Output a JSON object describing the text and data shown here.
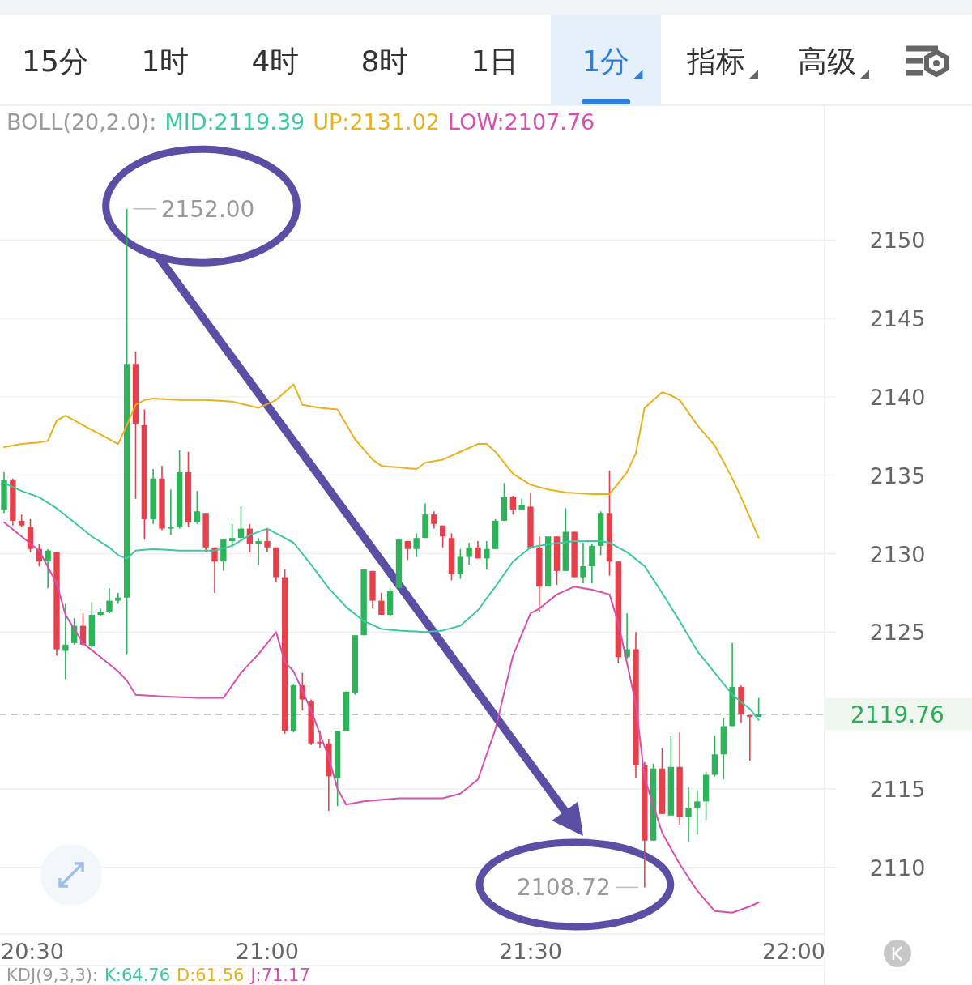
{
  "chart_data": {
    "type": "candlestick",
    "legend_title": "BOLL(20,2.0):",
    "legend": "top",
    "grid": "y",
    "xlim": [
      20.4923,
      22.0585
    ],
    "ylim": [
      2105.9,
      2158.6
    ],
    "xticks": [
      {
        "value": 20.5,
        "label": "20:30"
      },
      {
        "value": 21,
        "label": "21:00"
      },
      {
        "value": 21.5,
        "label": "21:30"
      },
      {
        "value": 22,
        "label": "22:00"
      }
    ],
    "yticks": [
      2110,
      2115,
      2125,
      2130,
      2135,
      2140,
      2145,
      2150
    ],
    "x": [
      20.5,
      20.5167,
      20.5333,
      20.55,
      20.5667,
      20.5833,
      20.6,
      20.6167,
      20.6333,
      20.65,
      20.6667,
      20.6833,
      20.7,
      20.7167,
      20.7333,
      20.75,
      20.7667,
      20.7833,
      20.8,
      20.8167,
      20.8333,
      20.85,
      20.8667,
      20.8833,
      20.9,
      20.9167,
      20.9333,
      20.95,
      20.9667,
      20.9833,
      21.0,
      21.0167,
      21.0333,
      21.05,
      21.0667,
      21.0833,
      21.1,
      21.1167,
      21.1333,
      21.15,
      21.1667,
      21.1833,
      21.2,
      21.2167,
      21.2333,
      21.25,
      21.2667,
      21.2833,
      21.3,
      21.3167,
      21.3333,
      21.35,
      21.3667,
      21.3833,
      21.4,
      21.4167,
      21.4333,
      21.45,
      21.4667,
      21.4833,
      21.5,
      21.5167,
      21.5333,
      21.55,
      21.5667,
      21.5833,
      21.6,
      21.6167,
      21.6333,
      21.65,
      21.6667,
      21.6833,
      21.7,
      21.7167,
      21.7333,
      21.75,
      21.7667,
      21.7833,
      21.8,
      21.8167,
      21.8333,
      21.85,
      21.8667,
      21.8833,
      21.9,
      21.9167,
      21.9333
    ],
    "ohlc": [
      [
        2132.8,
        2135.2,
        2132.6,
        2134.7
      ],
      [
        2134.7,
        2134.8,
        2131.8,
        2132.1
      ],
      [
        2132.1,
        2132.5,
        2131.7,
        2131.8
      ],
      [
        2131.7,
        2132.2,
        2130.1,
        2130.3
      ],
      [
        2130.3,
        2130.6,
        2129.2,
        2129.5
      ],
      [
        2129.5,
        2130.3,
        2127.8,
        2130.2
      ],
      [
        2130.1,
        2130.1,
        2123.5,
        2123.9
      ],
      [
        2123.8,
        2126.8,
        2122.0,
        2124.2
      ],
      [
        2124.3,
        2125.9,
        2124.2,
        2125.4
      ],
      [
        2125.4,
        2126.2,
        2124.1,
        2124.2
      ],
      [
        2124.1,
        2126.9,
        2124.0,
        2126.1
      ],
      [
        2126.1,
        2126.5,
        2126.0,
        2126.3
      ],
      [
        2126.3,
        2127.8,
        2126.2,
        2127.0
      ],
      [
        2127.0,
        2127.5,
        2126.8,
        2127.2
      ],
      [
        2127.2,
        2152.0,
        2123.6,
        2142.1
      ],
      [
        2142.1,
        2142.9,
        2133.5,
        2138.3
      ],
      [
        2138.2,
        2139.2,
        2130.9,
        2132.2
      ],
      [
        2132.2,
        2135.4,
        2131.9,
        2134.8
      ],
      [
        2134.8,
        2135.6,
        2131.5,
        2131.6
      ],
      [
        2131.6,
        2134.1,
        2131.2,
        2131.7
      ],
      [
        2131.7,
        2136.6,
        2131.6,
        2135.2
      ],
      [
        2135.2,
        2136.5,
        2131.7,
        2132.0
      ],
      [
        2132.0,
        2134.0,
        2131.9,
        2132.7
      ],
      [
        2132.6,
        2132.6,
        2130.1,
        2130.4
      ],
      [
        2130.4,
        2130.4,
        2127.5,
        2129.5
      ],
      [
        2129.5,
        2130.9,
        2128.9,
        2130.9
      ],
      [
        2130.8,
        2131.9,
        2130.5,
        2131.0
      ],
      [
        2131.0,
        2133.0,
        2131.0,
        2131.6
      ],
      [
        2131.6,
        2131.9,
        2130.1,
        2130.6
      ],
      [
        2130.6,
        2131.0,
        2129.3,
        2130.8
      ],
      [
        2130.8,
        2131.6,
        2130.1,
        2130.4
      ],
      [
        2130.4,
        2130.4,
        2128.2,
        2128.5
      ],
      [
        2128.5,
        2129.0,
        2118.5,
        2118.7
      ],
      [
        2118.7,
        2121.7,
        2118.6,
        2121.6
      ],
      [
        2121.6,
        2122.4,
        2120.0,
        2120.7
      ],
      [
        2120.6,
        2120.7,
        2117.8,
        2117.9
      ],
      [
        2118.0,
        2118.7,
        2117.6,
        2117.9
      ],
      [
        2117.9,
        2118.2,
        2113.6,
        2115.8
      ],
      [
        2115.7,
        2118.7,
        2113.9,
        2118.7
      ],
      [
        2118.7,
        2121.2,
        2118.7,
        2121.2
      ],
      [
        2121.1,
        2124.8,
        2121.0,
        2124.8
      ],
      [
        2124.8,
        2129.0,
        2124.8,
        2129.0
      ],
      [
        2128.9,
        2128.9,
        2126.5,
        2127.0
      ],
      [
        2127.0,
        2127.5,
        2126.1,
        2126.1
      ],
      [
        2126.1,
        2127.8,
        2126.0,
        2127.6
      ],
      [
        2127.8,
        2131.0,
        2127.8,
        2130.9
      ],
      [
        2130.8,
        2130.8,
        2129.6,
        2130.3
      ],
      [
        2130.3,
        2131.3,
        2129.8,
        2131.0
      ],
      [
        2131.0,
        2133.2,
        2131.0,
        2132.5
      ],
      [
        2132.5,
        2132.7,
        2131.6,
        2131.9
      ],
      [
        2131.8,
        2131.8,
        2130.4,
        2131.1
      ],
      [
        2131.0,
        2131.3,
        2128.3,
        2128.7
      ],
      [
        2128.7,
        2130.3,
        2128.4,
        2129.8
      ],
      [
        2129.8,
        2130.7,
        2129.3,
        2130.4
      ],
      [
        2130.4,
        2130.8,
        2129.7,
        2129.7
      ],
      [
        2129.7,
        2130.8,
        2129.0,
        2130.3
      ],
      [
        2130.3,
        2132.2,
        2130.3,
        2132.1
      ],
      [
        2132.1,
        2134.5,
        2132.1,
        2133.6
      ],
      [
        2133.6,
        2133.7,
        2132.5,
        2132.8
      ],
      [
        2132.8,
        2133.5,
        2132.8,
        2133.1
      ],
      [
        2133.0,
        2133.9,
        2130.3,
        2130.4
      ],
      [
        2130.4,
        2131.1,
        2126.3,
        2127.9
      ],
      [
        2127.9,
        2131.1,
        2127.9,
        2131.1
      ],
      [
        2131.1,
        2131.1,
        2128.0,
        2128.9
      ],
      [
        2128.9,
        2132.9,
        2128.9,
        2131.4
      ],
      [
        2131.4,
        2131.4,
        2128.5,
        2128.5
      ],
      [
        2128.5,
        2130.7,
        2128.1,
        2129.2
      ],
      [
        2129.2,
        2130.6,
        2128.1,
        2130.5
      ],
      [
        2130.5,
        2132.7,
        2129.9,
        2132.6
      ],
      [
        2132.6,
        2135.3,
        2128.6,
        2129.5
      ],
      [
        2129.5,
        2129.5,
        2123.0,
        2123.4
      ],
      [
        2123.4,
        2126.2,
        2123.3,
        2123.9
      ],
      [
        2123.9,
        2125.0,
        2115.7,
        2116.5
      ],
      [
        2116.5,
        2116.7,
        2108.72,
        2111.7
      ],
      [
        2111.7,
        2116.6,
        2111.7,
        2116.3
      ],
      [
        2116.3,
        2117.6,
        2113.4,
        2113.4
      ],
      [
        2113.3,
        2118.4,
        2113.3,
        2116.4
      ],
      [
        2116.4,
        2118.6,
        2112.7,
        2113.2
      ],
      [
        2113.2,
        2115.1,
        2111.6,
        2113.8
      ],
      [
        2113.8,
        2114.9,
        2112.1,
        2114.2
      ],
      [
        2114.2,
        2116.1,
        2113.0,
        2115.9
      ],
      [
        2115.9,
        2118.4,
        2115.8,
        2117.2
      ],
      [
        2117.2,
        2119.5,
        2115.6,
        2119.0
      ],
      [
        2119.0,
        2124.3,
        2119.0,
        2121.5
      ],
      [
        2121.5,
        2121.6,
        2119.2,
        2119.8
      ],
      [
        2119.7,
        2119.7,
        2116.8,
        2119.6
      ],
      [
        2119.6,
        2120.8,
        2119.6,
        2119.76
      ]
    ],
    "series": [
      {
        "type": "line",
        "name": "MID:2119.39",
        "color": "#3cc8a2",
        "x": [
          20.5,
          20.5333,
          20.5667,
          20.6,
          20.6333,
          20.6667,
          20.7,
          20.7167,
          20.7333,
          20.75,
          20.7833,
          20.8333,
          20.9,
          20.9333,
          20.9667,
          21.0,
          21.0333,
          21.05,
          21.0833,
          21.1167,
          21.15,
          21.1833,
          21.2167,
          21.25,
          21.3,
          21.3333,
          21.3667,
          21.4,
          21.4333,
          21.4667,
          21.5,
          21.5333,
          21.5833,
          21.6333,
          21.65,
          21.6667,
          21.6833,
          21.7167,
          21.75,
          21.7833,
          21.8167,
          21.85,
          21.8833,
          21.9167,
          21.9333
        ],
        "values": [
          2134.5,
          2134.0,
          2133.6,
          2132.9,
          2132.0,
          2131.1,
          2130.4,
          2129.9,
          2129.7,
          2130.2,
          2130.3,
          2130.2,
          2130.2,
          2130.5,
          2131.2,
          2131.6,
          2131.0,
          2130.7,
          2129.3,
          2127.8,
          2126.6,
          2125.7,
          2125.2,
          2125.1,
          2125.0,
          2125.1,
          2125.4,
          2126.4,
          2127.9,
          2129.5,
          2130.4,
          2130.6,
          2130.8,
          2130.8,
          2130.7,
          2130.4,
          2130.1,
          2129.2,
          2127.5,
          2125.7,
          2123.8,
          2122.4,
          2121.0,
          2120.1,
          2119.39
        ]
      },
      {
        "type": "line",
        "name": "UP:2131.02",
        "color": "#e8b21e",
        "x": [
          20.5,
          20.5333,
          20.5667,
          20.5833,
          20.6,
          20.6167,
          20.65,
          20.6833,
          20.7167,
          20.7333,
          20.75,
          20.7667,
          20.7833,
          20.8333,
          20.8833,
          20.9333,
          20.9833,
          21.0167,
          21.05,
          21.0667,
          21.1,
          21.1333,
          21.1667,
          21.2,
          21.2167,
          21.25,
          21.2833,
          21.3,
          21.3333,
          21.3667,
          21.4,
          21.4167,
          21.4333,
          21.4667,
          21.5,
          21.5333,
          21.5667,
          21.6167,
          21.65,
          21.6667,
          21.6833,
          21.7,
          21.7167,
          21.75,
          21.7667,
          21.7833,
          21.8167,
          21.85,
          21.8833,
          21.9,
          21.9333
        ],
        "values": [
          2136.8,
          2137.0,
          2137.1,
          2137.2,
          2138.5,
          2138.8,
          2138.2,
          2137.6,
          2137.0,
          2138.2,
          2139.5,
          2139.8,
          2139.9,
          2139.8,
          2139.8,
          2139.7,
          2139.3,
          2139.8,
          2140.8,
          2139.5,
          2139.3,
          2139.2,
          2137.3,
          2136.0,
          2135.6,
          2135.5,
          2135.4,
          2135.8,
          2136.0,
          2136.5,
          2137.0,
          2137.0,
          2136.5,
          2135.1,
          2134.4,
          2134.1,
          2133.9,
          2133.8,
          2133.8,
          2134.5,
          2135.2,
          2136.4,
          2139.3,
          2140.3,
          2140.1,
          2139.8,
          2138.2,
          2136.9,
          2134.8,
          2133.6,
          2131.02
        ]
      },
      {
        "type": "line",
        "name": "LOW:2107.76",
        "color": "#d84fb2",
        "x": [
          20.5,
          20.5333,
          20.5667,
          20.6,
          20.6167,
          20.65,
          20.6833,
          20.7167,
          20.7333,
          20.75,
          20.8,
          20.8667,
          20.9167,
          20.95,
          20.9833,
          21.0167,
          21.0333,
          21.05,
          21.0833,
          21.1167,
          21.1333,
          21.15,
          21.1833,
          21.25,
          21.3333,
          21.3667,
          21.4,
          21.4333,
          21.4667,
          21.5,
          21.5167,
          21.55,
          21.5833,
          21.6167,
          21.65,
          21.6667,
          21.7,
          21.7167,
          21.75,
          21.7833,
          21.8167,
          21.85,
          21.8833,
          21.9167,
          21.9333
        ],
        "values": [
          2132.0,
          2131.1,
          2130.2,
          2128.1,
          2126.1,
          2124.3,
          2123.4,
          2122.5,
          2121.9,
          2121.0,
          2120.9,
          2120.8,
          2120.8,
          2122.4,
          2123.6,
          2125.0,
          2123.1,
          2122.5,
          2120.0,
          2117.0,
          2115.0,
          2114.0,
          2114.2,
          2114.4,
          2114.4,
          2114.7,
          2115.6,
          2118.8,
          2123.5,
          2126.2,
          2126.5,
          2127.4,
          2127.9,
          2127.7,
          2127.4,
          2125.6,
          2120.4,
          2115.7,
          2112.2,
          2110.2,
          2108.5,
          2107.2,
          2107.1,
          2107.5,
          2107.76
        ]
      }
    ],
    "ref_lines": [
      {
        "axis": "y",
        "value": 2119.76,
        "label": "2119.76",
        "line_style": "dashed"
      }
    ],
    "annotations": [
      "15分",
      "1时",
      "4时",
      "8时",
      "1日",
      "1分",
      "指标",
      "高级",
      "KDJ(9,3,3):",
      "K:64.76",
      "D:61.56",
      "J:71.17",
      {
        "text": "2152.00",
        "x": 20.7333,
        "y": 2152.0
      },
      {
        "text": "2108.72",
        "x": 21.7167,
        "y": 2108.72
      }
    ]
  }
}
